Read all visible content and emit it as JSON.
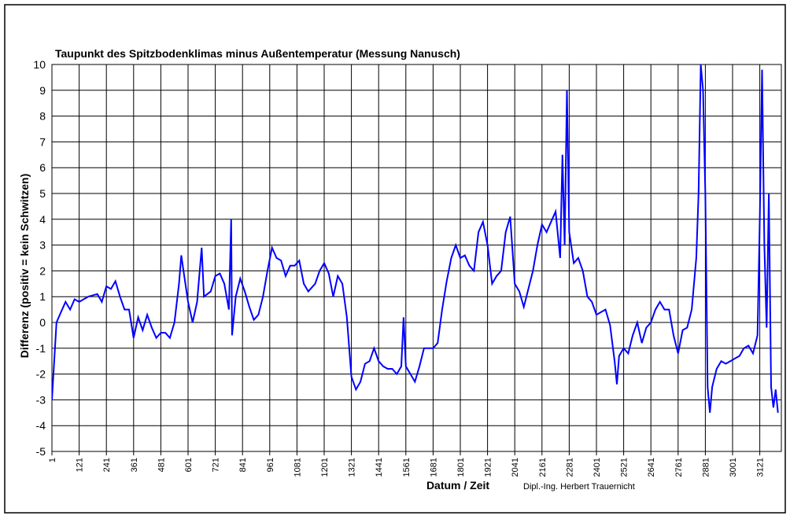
{
  "chart_data": {
    "type": "line",
    "title": "Taupunkt des Spitzbodenklimas minus Außentemperatur (Messung Nanusch)",
    "x_label": "Datum / Zeit",
    "y_label": "Differenz (positiv = kein Schwitzen)",
    "annotation": "Dipl.-Ing. Herbert Trauernicht",
    "grid": true,
    "xlim": [
      1,
      3216
    ],
    "ylim": [
      -5,
      10
    ],
    "xticks": [
      1,
      121,
      241,
      361,
      481,
      601,
      721,
      841,
      961,
      1081,
      1201,
      1321,
      1441,
      1561,
      1681,
      1801,
      1921,
      2041,
      2161,
      2281,
      2401,
      2521,
      2641,
      2761,
      2881,
      3001,
      3121
    ],
    "yticks": [
      -5,
      -4,
      -3,
      -2,
      -1,
      0,
      1,
      2,
      3,
      4,
      5,
      6,
      7,
      8,
      9,
      10
    ],
    "x": [
      1,
      11,
      21,
      41,
      61,
      81,
      101,
      121,
      161,
      201,
      221,
      241,
      261,
      281,
      301,
      321,
      341,
      361,
      381,
      401,
      421,
      441,
      461,
      481,
      501,
      521,
      541,
      561,
      571,
      581,
      601,
      621,
      641,
      661,
      671,
      701,
      721,
      741,
      761,
      781,
      791,
      795,
      811,
      831,
      851,
      871,
      891,
      911,
      931,
      951,
      971,
      991,
      1011,
      1031,
      1051,
      1071,
      1091,
      1111,
      1131,
      1161,
      1181,
      1201,
      1221,
      1241,
      1261,
      1281,
      1301,
      1321,
      1341,
      1361,
      1381,
      1401,
      1421,
      1441,
      1461,
      1481,
      1501,
      1521,
      1541,
      1551,
      1561,
      1581,
      1601,
      1621,
      1641,
      1661,
      1681,
      1701,
      1721,
      1741,
      1761,
      1781,
      1801,
      1821,
      1841,
      1861,
      1881,
      1901,
      1921,
      1941,
      1961,
      1981,
      2001,
      2021,
      2041,
      2061,
      2081,
      2101,
      2121,
      2141,
      2161,
      2181,
      2201,
      2221,
      2241,
      2251,
      2261,
      2271,
      2281,
      2301,
      2321,
      2341,
      2361,
      2381,
      2401,
      2421,
      2441,
      2461,
      2481,
      2491,
      2501,
      2521,
      2541,
      2561,
      2581,
      2601,
      2621,
      2641,
      2661,
      2681,
      2701,
      2721,
      2741,
      2761,
      2781,
      2801,
      2821,
      2841,
      2851,
      2861,
      2871,
      2881,
      2891,
      2901,
      2911,
      2931,
      2951,
      2971,
      2991,
      3011,
      3031,
      3051,
      3071,
      3091,
      3111,
      3121,
      3131,
      3141,
      3151,
      3161,
      3171,
      3181,
      3191,
      3201
    ],
    "series": [
      {
        "color": "#0000ff",
        "values": [
          -3,
          -1.5,
          0,
          0.4,
          0.8,
          0.5,
          0.9,
          0.8,
          1.0,
          1.1,
          0.8,
          1.4,
          1.3,
          1.6,
          1.0,
          0.5,
          0.5,
          -0.6,
          0.2,
          -0.3,
          0.3,
          -0.2,
          -0.6,
          -0.4,
          -0.4,
          -0.6,
          0,
          1.5,
          2.6,
          2.0,
          0.8,
          0,
          0.8,
          2.9,
          1.0,
          1.2,
          1.8,
          1.9,
          1.5,
          0.5,
          4.0,
          -0.5,
          1.0,
          1.7,
          1.2,
          0.6,
          0.1,
          0.3,
          1.0,
          2.0,
          2.9,
          2.5,
          2.4,
          1.8,
          2.2,
          2.2,
          2.4,
          1.5,
          1.2,
          1.5,
          2.0,
          2.3,
          1.9,
          1.0,
          1.8,
          1.5,
          0.2,
          -2.1,
          -2.6,
          -2.3,
          -1.6,
          -1.5,
          -1.0,
          -1.5,
          -1.7,
          -1.8,
          -1.8,
          -2.0,
          -1.7,
          0.2,
          -1.7,
          -2.0,
          -2.3,
          -1.7,
          -1.0,
          -1.0,
          -1.0,
          -0.8,
          0.5,
          1.6,
          2.5,
          3.0,
          2.5,
          2.6,
          2.2,
          2.0,
          3.5,
          3.9,
          3.0,
          1.5,
          1.8,
          2.0,
          3.5,
          4.1,
          1.5,
          1.2,
          0.6,
          1.3,
          2.0,
          3.0,
          3.8,
          3.5,
          3.9,
          4.3,
          2.5,
          6.5,
          3.0,
          9.0,
          3.5,
          2.3,
          2.5,
          2.0,
          1.0,
          0.8,
          0.3,
          0.4,
          0.5,
          -0.1,
          -1.5,
          -2.4,
          -1.3,
          -1.0,
          -1.2,
          -0.5,
          0.0,
          -0.8,
          -0.2,
          0.0,
          0.5,
          0.8,
          0.5,
          0.5,
          -0.5,
          -1.2,
          -0.3,
          -0.2,
          0.5,
          2.5,
          5,
          10,
          9,
          5,
          -2.5,
          -3.5,
          -2.5,
          -1.8,
          -1.5,
          -1.6,
          -1.5,
          -1.4,
          -1.3,
          -1.0,
          -0.9,
          -1.2,
          -0.5,
          4.0,
          9.8,
          3.0,
          -0.2,
          5.0,
          -2.5,
          -3.3,
          -2.6,
          -3.5
        ]
      }
    ]
  }
}
